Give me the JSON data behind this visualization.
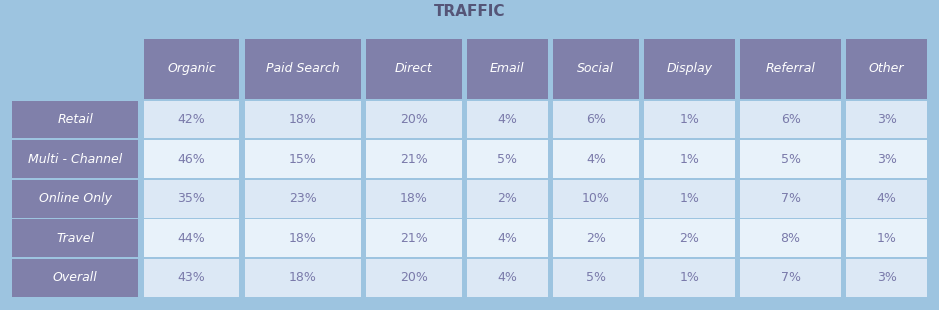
{
  "title": "TRAFFIC",
  "columns": [
    "",
    "Organic",
    "Paid Search",
    "Direct",
    "Email",
    "Social",
    "Display",
    "Referral",
    "Other"
  ],
  "rows": [
    [
      "Retail",
      "42%",
      "18%",
      "20%",
      "4%",
      "6%",
      "1%",
      "6%",
      "3%"
    ],
    [
      "Multi - Channel",
      "46%",
      "15%",
      "21%",
      "5%",
      "4%",
      "1%",
      "5%",
      "3%"
    ],
    [
      "Online Only",
      "35%",
      "23%",
      "18%",
      "2%",
      "10%",
      "1%",
      "7%",
      "4%"
    ],
    [
      "Travel",
      "44%",
      "18%",
      "21%",
      "4%",
      "2%",
      "2%",
      "8%",
      "1%"
    ],
    [
      "Overall",
      "43%",
      "18%",
      "20%",
      "4%",
      "5%",
      "1%",
      "7%",
      "3%"
    ]
  ],
  "bg_color": "#9dc4e0",
  "header_bg": "#8080aa",
  "row_label_bg": "#8080aa",
  "cell_bg_light": "#dce8f5",
  "cell_bg_lighter": "#e8f2fa",
  "header_text_color": "#ffffff",
  "row_label_text_color": "#ffffff",
  "cell_text_color": "#7a7aaa",
  "title_color": "#555577",
  "title_fontsize": 11,
  "cell_fontsize": 9,
  "header_fontsize": 9
}
